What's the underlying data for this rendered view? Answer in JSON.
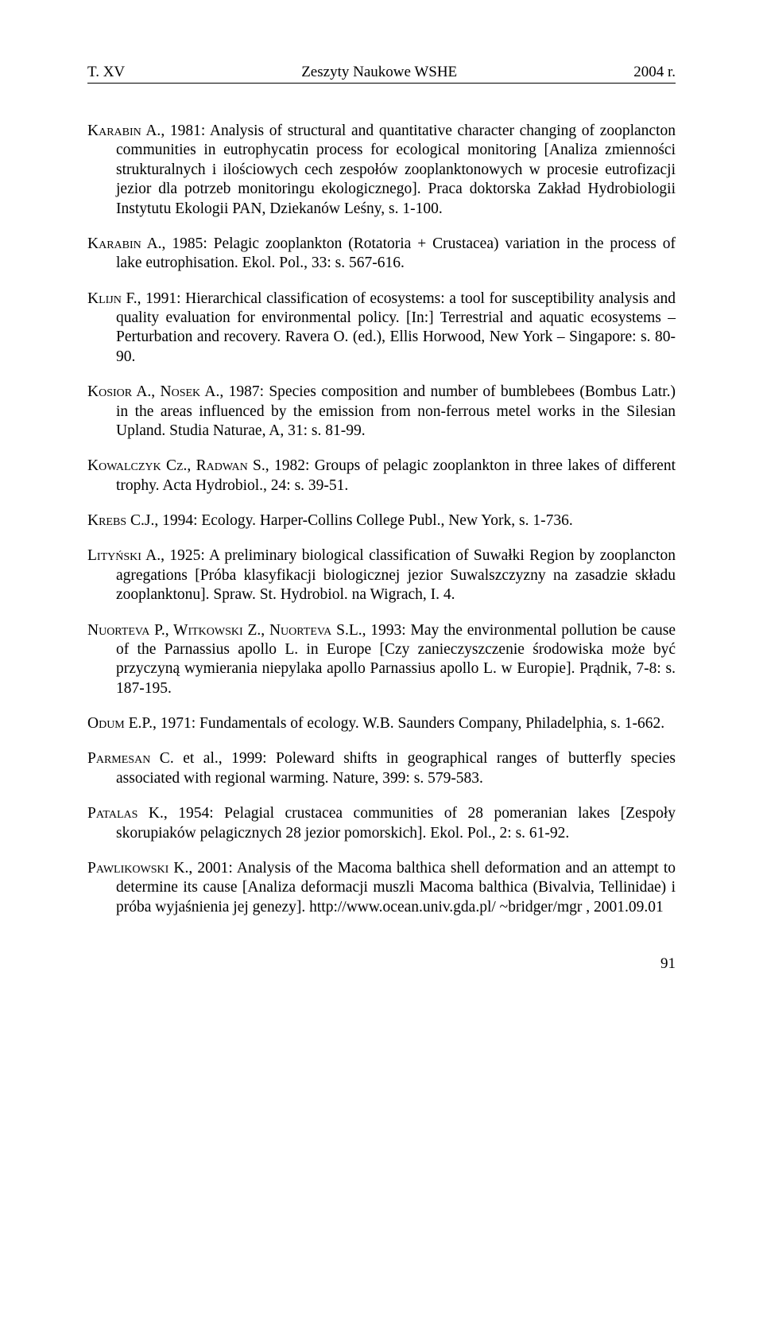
{
  "header": {
    "left": "T. XV",
    "center": "Zeszyty Naukowe WSHE",
    "right": "2004 r."
  },
  "references": [
    {
      "author": "Karabin A.",
      "text": ", 1981: Analysis of structural and quantitative character changing of zooplancton communities in eutrophycatin process for ecological monitoring [Analiza zmienności strukturalnych i ilościowych cech zespołów zooplanktonowych w procesie eutrofizacji jezior dla potrzeb monitoringu ekologicznego]. Praca doktorska Zakład Hydrobiologii Instytutu Ekologii PAN, Dziekanów Leśny, s. 1-100."
    },
    {
      "author": "Karabin A.",
      "text": ", 1985: Pelagic zooplankton (Rotatoria + Crustacea) variation in the process of lake eutrophisation. Ekol. Pol., 33: s. 567-616."
    },
    {
      "author": "Klijn F.",
      "text": ", 1991: Hierarchical classification of ecosystems: a tool for susceptibility analysis and quality evaluation for environmental policy. [In:] Terrestrial and aquatic ecosystems – Perturbation and recovery. Ravera O. (ed.), Ellis Horwood, New York – Singapore: s. 80-90."
    },
    {
      "author": "Kosior A., Nosek A.",
      "text": ", 1987: Species composition and number of bumblebees (Bombus Latr.) in the areas influenced by the emission from non-ferrous metel works in the Silesian Upland. Studia Naturae, A, 31: s. 81-99."
    },
    {
      "author": "Kowalczyk Cz., Radwan S.",
      "text": ", 1982: Groups of pelagic zooplankton in three lakes of different trophy. Acta Hydrobiol., 24: s. 39-51."
    },
    {
      "author": "Krebs C.J.",
      "text": ", 1994: Ecology. Harper-Collins College Publ., New York, s. 1-736."
    },
    {
      "author": "Lityński A.",
      "text": ", 1925: A preliminary biological classification of Suwałki Region by zooplancton agregations [Próba klasyfikacji biologicznej jezior Suwalszczyzny na zasadzie składu zooplanktonu]. Spraw. St. Hydrobiol. na Wigrach, I. 4."
    },
    {
      "author": "Nuorteva P., Witkowski Z., Nuorteva S.L.",
      "text": ", 1993: May the environmental pollution be cause of the Parnassius apollo L. in Europe [Czy zanieczyszczenie środowiska może być przyczyną wymierania niepylaka apollo Parnassius apollo L. w Europie]. Prądnik, 7-8: s. 187-195."
    },
    {
      "author": "Odum E.P.",
      "text": ", 1971: Fundamentals of ecology. W.B. Saunders Company, Philadelphia, s. 1-662."
    },
    {
      "author": "Parmesan C.",
      "text": " et al., 1999: Poleward shifts in geographical ranges of butterfly species associated with regional warming. Nature, 399: s. 579-583."
    },
    {
      "author": "Patalas K.",
      "text": ", 1954: Pelagial crustacea communities of 28 pomeranian lakes [Zespoły skorupiaków pelagicznych 28 jezior pomorskich]. Ekol. Pol., 2: s. 61-92."
    },
    {
      "author": "Pawlikowski K.",
      "text": ", 2001: Analysis of the Macoma balthica shell deformation and an attempt to determine its cause [Analiza deformacji muszli Macoma balthica (Bivalvia, Tellinidae) i próba wyjaśnienia jej genezy]. http://www.ocean.univ.gda.pl/ ~bridger/mgr , 2001.09.01"
    }
  ],
  "page_number": "91"
}
